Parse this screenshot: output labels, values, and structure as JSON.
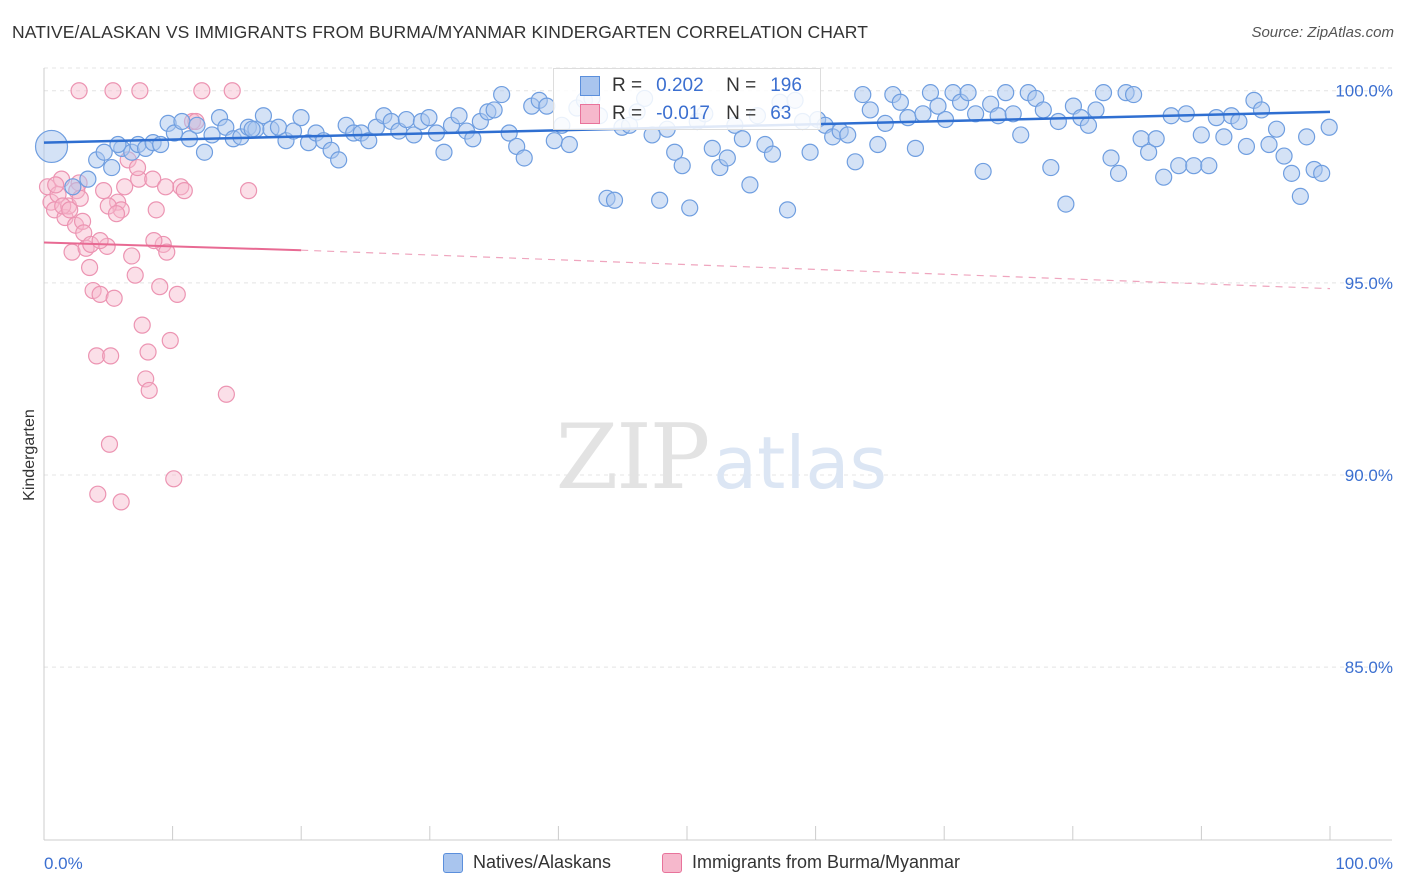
{
  "title": "NATIVE/ALASKAN VS IMMIGRANTS FROM BURMA/MYANMAR KINDERGARTEN CORRELATION CHART",
  "source": "Source: ZipAtlas.com",
  "watermark": {
    "zip": "ZIP",
    "atlas": "atlas"
  },
  "colors": {
    "blue": "#5b8fdc",
    "blue_fill": "#a9c5ee",
    "pink": "#e8739b",
    "pink_fill": "#f6b8cc",
    "tick": "#3b6fd0"
  },
  "legend": {
    "rows": [
      {
        "r_label": "R =",
        "r_value": "0.202",
        "n_label": "N =",
        "n_value": "196"
      },
      {
        "r_label": "R =",
        "r_value": "-0.017",
        "n_label": "N =",
        "n_value": "63"
      }
    ]
  },
  "bottom_legend": [
    "Natives/Alaskans",
    "Immigrants from Burma/Myanmar"
  ],
  "chart_data": {
    "type": "scatter",
    "title": "NATIVE/ALASKAN VS IMMIGRANTS FROM BURMA/MYANMAR KINDERGARTEN CORRELATION CHART",
    "xlabel": "",
    "ylabel": "Kindergarten",
    "xlim": [
      0,
      100
    ],
    "ylim": [
      80.5,
      100.8
    ],
    "x_tick_labels": [
      "0.0%",
      "100.0%"
    ],
    "y_ticks": [
      100,
      95,
      90,
      85
    ],
    "y_tick_labels": [
      "100.0%",
      "95.0%",
      "90.0%",
      "85.0%"
    ],
    "grid": true,
    "series": [
      {
        "name": "Natives/Alaskans",
        "trend": {
          "x": [
            0,
            100
          ],
          "y": [
            98.65,
            99.45
          ],
          "style": "solid"
        },
        "points": [
          [
            0.6,
            98.55
          ],
          [
            3.5,
            97.7
          ],
          [
            4.2,
            98.2
          ],
          [
            4.8,
            98.4
          ],
          [
            5.4,
            98.0
          ],
          [
            6.2,
            98.5
          ],
          [
            7.0,
            98.4
          ],
          [
            7.5,
            98.6
          ],
          [
            8.1,
            98.5
          ],
          [
            8.7,
            98.65
          ],
          [
            9.3,
            98.6
          ],
          [
            9.9,
            99.15
          ],
          [
            10.4,
            98.9
          ],
          [
            11.0,
            99.2
          ],
          [
            11.6,
            98.75
          ],
          [
            12.2,
            99.1
          ],
          [
            12.8,
            98.4
          ],
          [
            13.4,
            98.85
          ],
          [
            14.0,
            99.3
          ],
          [
            14.5,
            99.05
          ],
          [
            15.1,
            98.75
          ],
          [
            15.7,
            98.8
          ],
          [
            16.3,
            99.05
          ],
          [
            16.9,
            99.0
          ],
          [
            17.5,
            99.35
          ],
          [
            18.1,
            99.0
          ],
          [
            18.7,
            99.05
          ],
          [
            19.3,
            98.7
          ],
          [
            19.9,
            98.95
          ],
          [
            20.5,
            99.3
          ],
          [
            21.1,
            98.65
          ],
          [
            21.7,
            98.9
          ],
          [
            22.3,
            98.7
          ],
          [
            22.9,
            98.45
          ],
          [
            23.5,
            98.2
          ],
          [
            24.1,
            99.1
          ],
          [
            24.7,
            98.9
          ],
          [
            25.3,
            98.9
          ],
          [
            25.9,
            98.7
          ],
          [
            26.5,
            99.05
          ],
          [
            27.1,
            99.35
          ],
          [
            27.7,
            99.2
          ],
          [
            28.3,
            98.95
          ],
          [
            28.9,
            99.25
          ],
          [
            29.5,
            98.85
          ],
          [
            30.1,
            99.2
          ],
          [
            30.7,
            99.3
          ],
          [
            31.3,
            98.9
          ],
          [
            31.9,
            98.4
          ],
          [
            32.5,
            99.1
          ],
          [
            33.1,
            99.35
          ],
          [
            33.7,
            98.95
          ],
          [
            34.2,
            98.75
          ],
          [
            34.8,
            99.2
          ],
          [
            35.4,
            99.45
          ],
          [
            35.9,
            99.5
          ],
          [
            36.5,
            99.9
          ],
          [
            37.1,
            98.9
          ],
          [
            37.7,
            98.55
          ],
          [
            38.3,
            98.25
          ],
          [
            38.9,
            99.6
          ],
          [
            39.5,
            99.75
          ],
          [
            40.1,
            99.6
          ],
          [
            40.7,
            98.7
          ],
          [
            41.3,
            99.1
          ],
          [
            41.9,
            98.6
          ],
          [
            42.5,
            99.55
          ],
          [
            43.1,
            99.75
          ],
          [
            43.7,
            99.8
          ],
          [
            44.3,
            99.35
          ],
          [
            44.9,
            97.2
          ],
          [
            45.5,
            97.15
          ],
          [
            46.1,
            99.05
          ],
          [
            46.7,
            99.1
          ],
          [
            47.3,
            99.45
          ],
          [
            47.9,
            99.8
          ],
          [
            48.5,
            98.85
          ],
          [
            49.1,
            97.15
          ],
          [
            49.7,
            99.0
          ],
          [
            50.3,
            98.4
          ],
          [
            50.9,
            98.05
          ],
          [
            51.5,
            96.95
          ],
          [
            52.1,
            99.2
          ],
          [
            52.7,
            99.4
          ],
          [
            53.3,
            98.5
          ],
          [
            53.9,
            98.0
          ],
          [
            54.5,
            98.25
          ],
          [
            55.1,
            99.1
          ],
          [
            55.7,
            98.75
          ],
          [
            56.3,
            97.55
          ],
          [
            56.9,
            99.35
          ],
          [
            57.5,
            98.6
          ],
          [
            58.1,
            98.35
          ],
          [
            58.7,
            99.7
          ],
          [
            59.3,
            96.9
          ],
          [
            59.9,
            99.75
          ],
          [
            60.5,
            99.2
          ],
          [
            61.1,
            98.4
          ],
          [
            61.7,
            99.25
          ],
          [
            62.3,
            99.1
          ],
          [
            62.9,
            98.8
          ],
          [
            63.5,
            98.95
          ],
          [
            64.1,
            98.85
          ],
          [
            64.7,
            98.15
          ],
          [
            65.3,
            99.9
          ],
          [
            65.9,
            99.5
          ],
          [
            66.5,
            98.6
          ],
          [
            67.1,
            99.15
          ],
          [
            67.7,
            99.9
          ],
          [
            68.3,
            99.7
          ],
          [
            68.9,
            99.3
          ],
          [
            69.5,
            98.5
          ],
          [
            70.1,
            99.4
          ],
          [
            70.7,
            99.95
          ],
          [
            71.3,
            99.6
          ],
          [
            71.9,
            99.25
          ],
          [
            72.5,
            99.95
          ],
          [
            73.1,
            99.7
          ],
          [
            73.7,
            99.95
          ],
          [
            74.3,
            99.4
          ],
          [
            74.9,
            97.9
          ],
          [
            75.5,
            99.65
          ],
          [
            76.1,
            99.35
          ],
          [
            76.7,
            99.95
          ],
          [
            77.3,
            99.4
          ],
          [
            77.9,
            98.85
          ],
          [
            78.5,
            99.95
          ],
          [
            79.1,
            99.8
          ],
          [
            79.7,
            99.5
          ],
          [
            80.3,
            98.0
          ],
          [
            80.9,
            99.2
          ],
          [
            81.5,
            97.05
          ],
          [
            82.1,
            99.6
          ],
          [
            82.7,
            99.3
          ],
          [
            83.3,
            99.1
          ],
          [
            83.9,
            99.5
          ],
          [
            84.5,
            99.95
          ],
          [
            85.1,
            98.25
          ],
          [
            85.7,
            97.85
          ],
          [
            86.3,
            99.95
          ],
          [
            86.9,
            99.9
          ],
          [
            87.5,
            98.75
          ],
          [
            88.1,
            98.4
          ],
          [
            88.7,
            98.75
          ],
          [
            89.3,
            97.75
          ],
          [
            89.9,
            99.35
          ],
          [
            90.5,
            98.05
          ],
          [
            91.1,
            99.4
          ],
          [
            91.7,
            98.05
          ],
          [
            92.3,
            98.85
          ],
          [
            92.9,
            98.05
          ],
          [
            93.5,
            99.3
          ],
          [
            94.1,
            98.8
          ],
          [
            94.7,
            99.35
          ],
          [
            95.3,
            99.2
          ],
          [
            95.9,
            98.55
          ],
          [
            96.5,
            99.75
          ],
          [
            97.1,
            99.5
          ],
          [
            97.7,
            98.6
          ],
          [
            98.3,
            99.0
          ],
          [
            98.9,
            98.3
          ],
          [
            99.5,
            97.85
          ],
          [
            100.2,
            97.25
          ],
          [
            100.7,
            98.8
          ],
          [
            101.3,
            97.95
          ],
          [
            101.9,
            97.85
          ],
          [
            102.5,
            99.05
          ],
          [
            2.3,
            97.5
          ],
          [
            5.9,
            98.6
          ],
          [
            16.6,
            99.0
          ]
        ]
      },
      {
        "name": "Immigrants from Burma/Myanmar",
        "trend": {
          "x": [
            0,
            20
          ],
          "y": [
            96.05,
            95.85
          ],
          "style": "solid",
          "dashed_extension": {
            "x": [
              20,
              100
            ],
            "y": [
              95.85,
              94.85
            ]
          }
        },
        "points": [
          [
            0.3,
            97.5
          ],
          [
            0.6,
            97.1
          ],
          [
            0.9,
            96.9
          ],
          [
            1.2,
            97.3
          ],
          [
            1.5,
            97.7
          ],
          [
            1.8,
            96.7
          ],
          [
            2.1,
            97.0
          ],
          [
            2.4,
            95.8
          ],
          [
            2.7,
            96.5
          ],
          [
            3.0,
            97.6
          ],
          [
            3.3,
            96.6
          ],
          [
            3.6,
            95.9
          ],
          [
            3.9,
            95.4
          ],
          [
            4.2,
            94.8
          ],
          [
            4.5,
            93.1
          ],
          [
            4.8,
            94.7
          ],
          [
            5.1,
            97.4
          ],
          [
            5.4,
            95.95
          ],
          [
            5.7,
            93.1
          ],
          [
            6.0,
            94.6
          ],
          [
            6.3,
            97.1
          ],
          [
            6.6,
            96.9
          ],
          [
            6.9,
            97.5
          ],
          [
            7.2,
            98.2
          ],
          [
            7.5,
            95.7
          ],
          [
            7.8,
            95.2
          ],
          [
            8.1,
            97.7
          ],
          [
            8.4,
            93.9
          ],
          [
            8.7,
            92.5
          ],
          [
            9.0,
            92.2
          ],
          [
            9.3,
            97.7
          ],
          [
            9.6,
            96.9
          ],
          [
            9.9,
            94.9
          ],
          [
            10.2,
            96.0
          ],
          [
            10.5,
            95.8
          ],
          [
            10.8,
            93.5
          ],
          [
            11.1,
            89.9
          ],
          [
            11.4,
            94.7
          ],
          [
            11.7,
            97.5
          ],
          [
            12.0,
            97.4
          ],
          [
            4.6,
            89.5
          ],
          [
            6.6,
            89.3
          ],
          [
            5.6,
            90.8
          ],
          [
            12.7,
            99.2
          ],
          [
            15.6,
            92.1
          ],
          [
            17.5,
            97.4
          ],
          [
            3.4,
            96.3
          ],
          [
            2.8,
            97.4
          ],
          [
            1.0,
            97.55
          ],
          [
            1.6,
            97.0
          ],
          [
            2.2,
            96.9
          ],
          [
            3.1,
            97.2
          ],
          [
            4.0,
            96.0
          ],
          [
            4.8,
            96.1
          ],
          [
            5.5,
            97.0
          ],
          [
            6.2,
            96.8
          ],
          [
            8.0,
            98.0
          ],
          [
            8.9,
            93.2
          ],
          [
            9.4,
            96.1
          ],
          [
            13.0,
            99.2
          ],
          [
            10.4,
            97.5
          ],
          [
            16.1,
            100.0
          ],
          [
            13.5,
            100.0
          ]
        ]
      }
    ],
    "extra_top_points_pink": [
      [
        3.0,
        100.0
      ],
      [
        5.9,
        100.0
      ],
      [
        8.2,
        100.0
      ]
    ]
  }
}
